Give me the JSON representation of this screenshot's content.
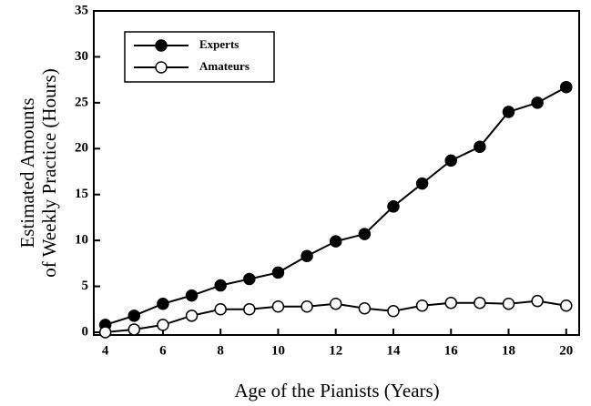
{
  "chart_data": {
    "type": "line",
    "ylabel": [
      "Estimated Amounts",
      "of Weekly Practice (Hours)"
    ],
    "xlabel": "Age of the Pianists (Years)",
    "x": [
      4,
      5,
      6,
      7,
      8,
      9,
      10,
      11,
      12,
      13,
      14,
      15,
      16,
      17,
      18,
      19,
      20
    ],
    "series": [
      {
        "name": "Experts",
        "color": "#000000",
        "filled": true,
        "values": [
          0.8,
          1.8,
          3.1,
          4.0,
          5.1,
          5.8,
          6.5,
          8.3,
          9.9,
          10.7,
          13.7,
          16.2,
          18.7,
          20.2,
          24.0,
          25.0,
          26.7
        ]
      },
      {
        "name": "Amateurs",
        "color": "#000000",
        "filled": false,
        "values": [
          0,
          0.3,
          0.8,
          1.8,
          2.5,
          2.5,
          2.8,
          2.8,
          3.1,
          2.6,
          2.3,
          2.9,
          3.2,
          3.2,
          3.1,
          3.4,
          2.9
        ]
      }
    ],
    "xlim": [
      3.6,
      20.45
    ],
    "xticks": [
      4,
      6,
      8,
      10,
      12,
      14,
      16,
      18,
      20
    ],
    "ylim": [
      -0.3,
      35
    ],
    "yticks": [
      0,
      5,
      10,
      15,
      20,
      25,
      30,
      35
    ],
    "legend": "upper left"
  }
}
